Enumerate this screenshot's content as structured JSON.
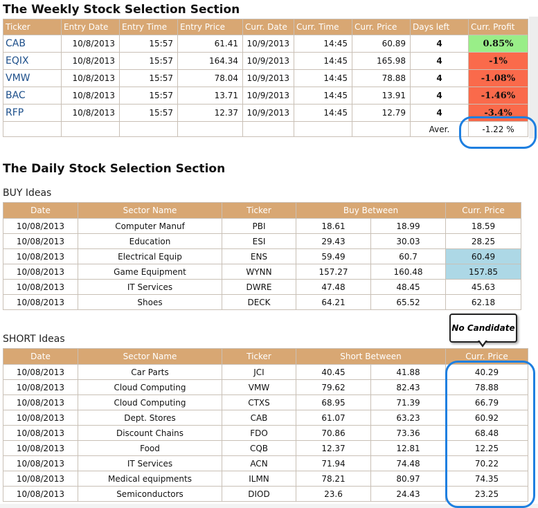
{
  "weekly": {
    "title": "The Weekly Stock Selection Section",
    "headers": [
      "Ticker",
      "Entry Date",
      "Entry Time",
      "Entry Price",
      "Curr. Date",
      "Curr. Time",
      "Curr. Price",
      "Days left",
      "Curr. Profit"
    ],
    "rows": [
      {
        "ticker": "CAB",
        "entry_date": "10/8/2013",
        "entry_time": "15:57",
        "entry_price": "61.41",
        "curr_date": "10/9/2013",
        "curr_time": "14:45",
        "curr_price": "60.89",
        "days_left": "4",
        "profit": "0.85%",
        "profit_color": "green"
      },
      {
        "ticker": "EQIX",
        "entry_date": "10/8/2013",
        "entry_time": "15:57",
        "entry_price": "164.34",
        "curr_date": "10/9/2013",
        "curr_time": "14:45",
        "curr_price": "165.98",
        "days_left": "4",
        "profit": "-1%",
        "profit_color": "red"
      },
      {
        "ticker": "VMW",
        "entry_date": "10/8/2013",
        "entry_time": "15:57",
        "entry_price": "78.04",
        "curr_date": "10/9/2013",
        "curr_time": "14:45",
        "curr_price": "78.88",
        "days_left": "4",
        "profit": "-1.08%",
        "profit_color": "red"
      },
      {
        "ticker": "BAC",
        "entry_date": "10/8/2013",
        "entry_time": "15:57",
        "entry_price": "13.71",
        "curr_date": "10/9/2013",
        "curr_time": "14:45",
        "curr_price": "13.91",
        "days_left": "4",
        "profit": "-1.46%",
        "profit_color": "red"
      },
      {
        "ticker": "RFP",
        "entry_date": "10/8/2013",
        "entry_time": "15:57",
        "entry_price": "12.37",
        "curr_date": "10/9/2013",
        "curr_time": "14:45",
        "curr_price": "12.79",
        "days_left": "4",
        "profit": "-3.4%",
        "profit_color": "red"
      }
    ],
    "avg_label": "Aver.",
    "avg_value": "-1.22 %"
  },
  "daily": {
    "title": "The Daily Stock Selection Section",
    "buy": {
      "label": "BUY Ideas",
      "headers": [
        "Date",
        "Sector Name",
        "Ticker",
        "Buy Between",
        "Curr. Price"
      ],
      "rows": [
        {
          "date": "10/08/2013",
          "sector": "Computer Manuf",
          "ticker": "PBI",
          "low": "18.61",
          "high": "18.99",
          "price": "18.59",
          "hl": false
        },
        {
          "date": "10/08/2013",
          "sector": "Education",
          "ticker": "ESI",
          "low": "29.43",
          "high": "30.03",
          "price": "28.25",
          "hl": false
        },
        {
          "date": "10/08/2013",
          "sector": "Electrical Equip",
          "ticker": "ENS",
          "low": "59.49",
          "high": "60.7",
          "price": "60.49",
          "hl": true
        },
        {
          "date": "10/08/2013",
          "sector": "Game Equipment",
          "ticker": "WYNN",
          "low": "157.27",
          "high": "160.48",
          "price": "157.85",
          "hl": true
        },
        {
          "date": "10/08/2013",
          "sector": "IT Services",
          "ticker": "DWRE",
          "low": "47.48",
          "high": "48.45",
          "price": "45.63",
          "hl": false
        },
        {
          "date": "10/08/2013",
          "sector": "Shoes",
          "ticker": "DECK",
          "low": "64.21",
          "high": "65.52",
          "price": "62.18",
          "hl": false
        }
      ]
    },
    "short": {
      "label": "SHORT Ideas",
      "headers": [
        "Date",
        "Sector Name",
        "Ticker",
        "Short Between",
        "Curr. Price"
      ],
      "rows": [
        {
          "date": "10/08/2013",
          "sector": "Car Parts",
          "ticker": "JCI",
          "low": "40.45",
          "high": "41.88",
          "price": "40.29"
        },
        {
          "date": "10/08/2013",
          "sector": "Cloud Computing",
          "ticker": "VMW",
          "low": "79.62",
          "high": "82.43",
          "price": "78.88"
        },
        {
          "date": "10/08/2013",
          "sector": "Cloud Computing",
          "ticker": "CTXS",
          "low": "68.95",
          "high": "71.39",
          "price": "66.79"
        },
        {
          "date": "10/08/2013",
          "sector": "Dept. Stores",
          "ticker": "CAB",
          "low": "61.07",
          "high": "63.23",
          "price": "60.92"
        },
        {
          "date": "10/08/2013",
          "sector": "Discount Chains",
          "ticker": "FDO",
          "low": "70.86",
          "high": "73.36",
          "price": "68.48"
        },
        {
          "date": "10/08/2013",
          "sector": "Food",
          "ticker": "CQB",
          "low": "12.37",
          "high": "12.81",
          "price": "12.25"
        },
        {
          "date": "10/08/2013",
          "sector": "IT Services",
          "ticker": "ACN",
          "low": "71.94",
          "high": "74.48",
          "price": "70.22"
        },
        {
          "date": "10/08/2013",
          "sector": "Medical equipments",
          "ticker": "ILMN",
          "low": "78.21",
          "high": "80.97",
          "price": "74.35"
        },
        {
          "date": "10/08/2013",
          "sector": "Semiconductors",
          "ticker": "DIOD",
          "low": "23.6",
          "high": "24.43",
          "price": "23.25"
        }
      ]
    },
    "callout": "No Candidate"
  },
  "colors": {
    "header": "#d8a773",
    "green": "#99ee88",
    "red": "#fa6a4b",
    "blue": "#add8e6",
    "ring": "#1e7fe0",
    "ticker_text": "#1d4f8a"
  }
}
